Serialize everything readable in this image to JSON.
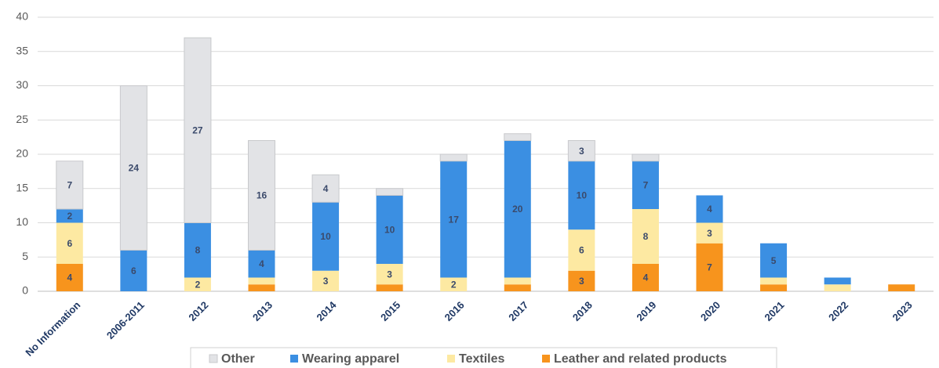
{
  "chart_data": {
    "type": "stacked_bar",
    "categories": [
      "No Information",
      "2006-2011",
      "2012",
      "2013",
      "2014",
      "2015",
      "2016",
      "2017",
      "2018",
      "2019",
      "2020",
      "2021",
      "2022",
      "2023"
    ],
    "series": [
      {
        "name": "Leather and related products",
        "color": "#f7941d",
        "values": [
          4,
          0,
          0,
          1,
          0,
          1,
          0,
          1,
          3,
          4,
          7,
          1,
          0,
          1
        ]
      },
      {
        "name": "Textiles",
        "color": "#fde9a2",
        "values": [
          6,
          0,
          2,
          1,
          3,
          3,
          2,
          1,
          6,
          8,
          3,
          1,
          1,
          0
        ]
      },
      {
        "name": "Wearing apparel",
        "color": "#3b8fe2",
        "values": [
          2,
          6,
          8,
          4,
          10,
          10,
          17,
          20,
          10,
          7,
          4,
          5,
          1,
          0
        ]
      },
      {
        "name": "Other",
        "color": "#e2e3e6",
        "values": [
          7,
          24,
          27,
          16,
          4,
          1,
          1,
          1,
          3,
          1,
          0,
          0,
          0,
          0
        ]
      }
    ],
    "ylim": [
      0,
      40
    ],
    "yticks": [
      0,
      5,
      10,
      15,
      20,
      25,
      30,
      35,
      40
    ],
    "grid": true
  }
}
